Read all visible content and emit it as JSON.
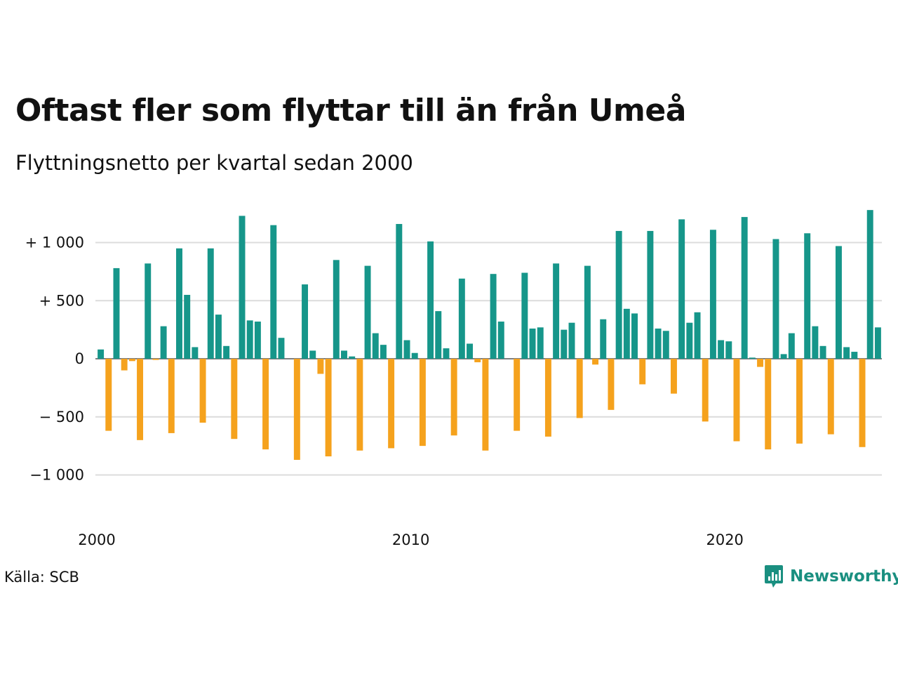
{
  "header": {
    "title": "Oftast fler som flyttar till än från Umeå",
    "subtitle": "Flyttningsnetto per kvartal sedan 2000"
  },
  "footer": {
    "source": "Källa: SCB",
    "brand": "Newsworthy"
  },
  "colors": {
    "positive": "#16968a",
    "negative": "#f5a21d",
    "grid": "#dcdcdc",
    "brand": "#1a8f80"
  },
  "chart_data": {
    "type": "bar",
    "title": "Oftast fler som flyttar till än från Umeå",
    "subtitle": "Flyttningsnetto per kvartal sedan 2000",
    "xlabel": "",
    "ylabel": "",
    "x_start": "2000",
    "frequency": "quarterly",
    "ylim": [
      -1200,
      1300
    ],
    "y_ticks": [
      1000,
      500,
      0,
      -500,
      -1000
    ],
    "y_tick_labels": [
      "+ 1 000",
      "+   500",
      "0",
      "−  500",
      "−1 000"
    ],
    "x_ticks": [
      "2000",
      "2010",
      "2020"
    ],
    "grid": true,
    "legend": "none",
    "values": [
      80,
      -620,
      780,
      -100,
      -20,
      -700,
      820,
      -10,
      280,
      -640,
      950,
      550,
      100,
      -550,
      950,
      380,
      110,
      -690,
      1230,
      330,
      320,
      -780,
      1150,
      180,
      0,
      -870,
      640,
      70,
      -130,
      -840,
      850,
      70,
      20,
      -790,
      800,
      220,
      120,
      -770,
      1160,
      160,
      50,
      -750,
      1010,
      410,
      90,
      -660,
      690,
      130,
      -30,
      -790,
      730,
      320,
      0,
      -620,
      740,
      260,
      270,
      -670,
      820,
      250,
      310,
      -510,
      800,
      -50,
      340,
      -440,
      1100,
      430,
      390,
      -220,
      1100,
      260,
      240,
      -300,
      1200,
      310,
      400,
      -540,
      1110,
      160,
      150,
      -710,
      1220,
      10,
      -70,
      -780,
      1030,
      40,
      220,
      -730,
      1080,
      280,
      110,
      -650,
      970,
      100,
      60,
      -760,
      1280,
      270
    ]
  }
}
